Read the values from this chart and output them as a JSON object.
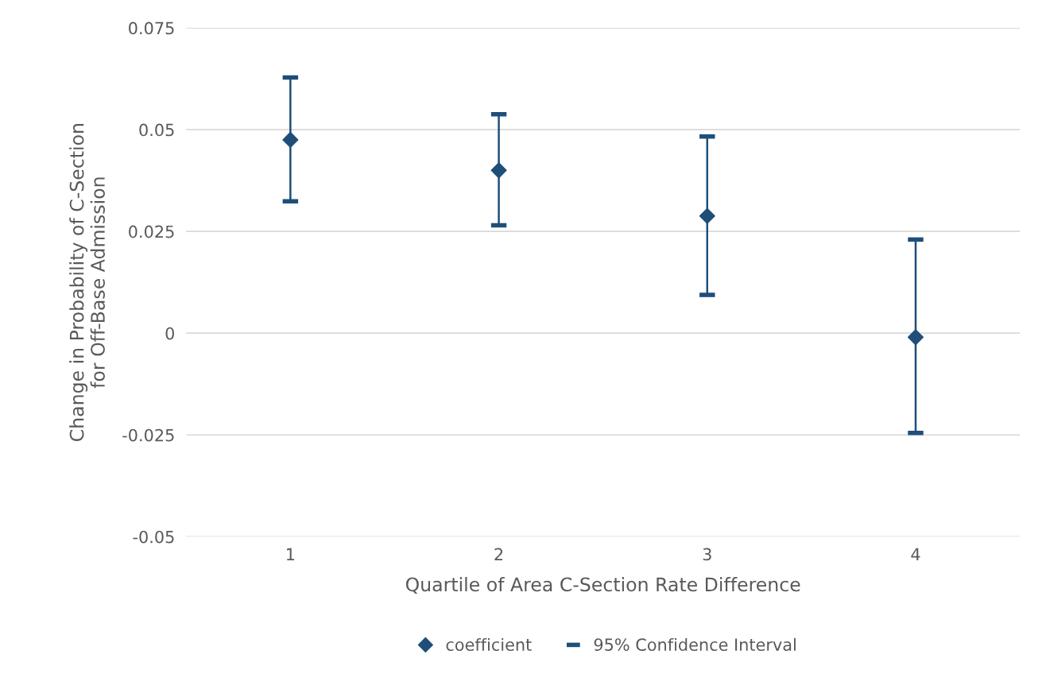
{
  "chart_data": {
    "type": "scatter",
    "xlabel": "Quartile of Area C-Section Rate Difference",
    "ylabel": "Change in Probability of C-Section\nfor Off-Base Admission",
    "categories": [
      "1",
      "2",
      "3",
      "4"
    ],
    "series": [
      {
        "name": "coefficient",
        "color": "#1f4e79",
        "values": [
          0.0475,
          0.04,
          0.0288,
          -0.001
        ],
        "errors": [
          [
            0.0324,
            0.0628
          ],
          [
            0.0265,
            0.0538
          ],
          [
            0.0094,
            0.0483
          ],
          [
            -0.0245,
            0.023
          ]
        ]
      }
    ],
    "annotations": [
      "95% Confidence Interval"
    ],
    "marker": "diamond",
    "ylim": [
      -0.05,
      0.075
    ],
    "yticks": [
      {
        "value": -0.05,
        "label": "-0.05"
      },
      {
        "value": -0.025,
        "label": "-0.025"
      },
      0,
      0.025,
      0.05,
      0.075
    ],
    "grid": "y",
    "legend": "bottom"
  }
}
